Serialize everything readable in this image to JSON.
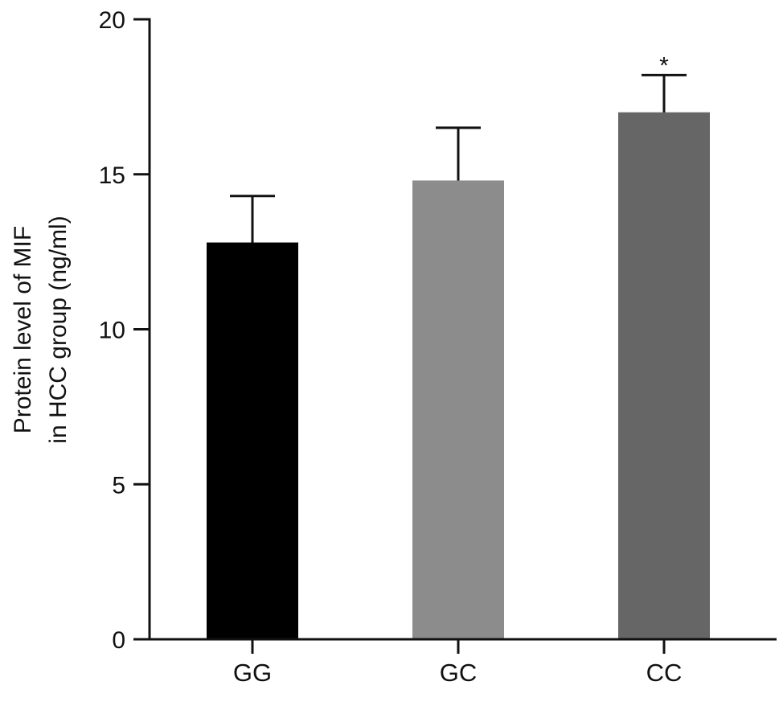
{
  "chart_data": {
    "type": "bar",
    "title": "",
    "xlabel": "",
    "ylabel_lines": [
      "Protein level of MIF",
      "in HCC group (ng/ml)"
    ],
    "categories": [
      "GG",
      "GC",
      "CC"
    ],
    "values": [
      12.8,
      14.8,
      17.0
    ],
    "error_upper": [
      14.3,
      16.5,
      18.2
    ],
    "significance": [
      "",
      "",
      "*"
    ],
    "ylim": [
      0,
      20
    ],
    "yticks": [
      0,
      5,
      10,
      15,
      20
    ],
    "grid": false,
    "legend": "none",
    "colors": [
      "#000000",
      "#8c8c8c",
      "#666666"
    ]
  }
}
